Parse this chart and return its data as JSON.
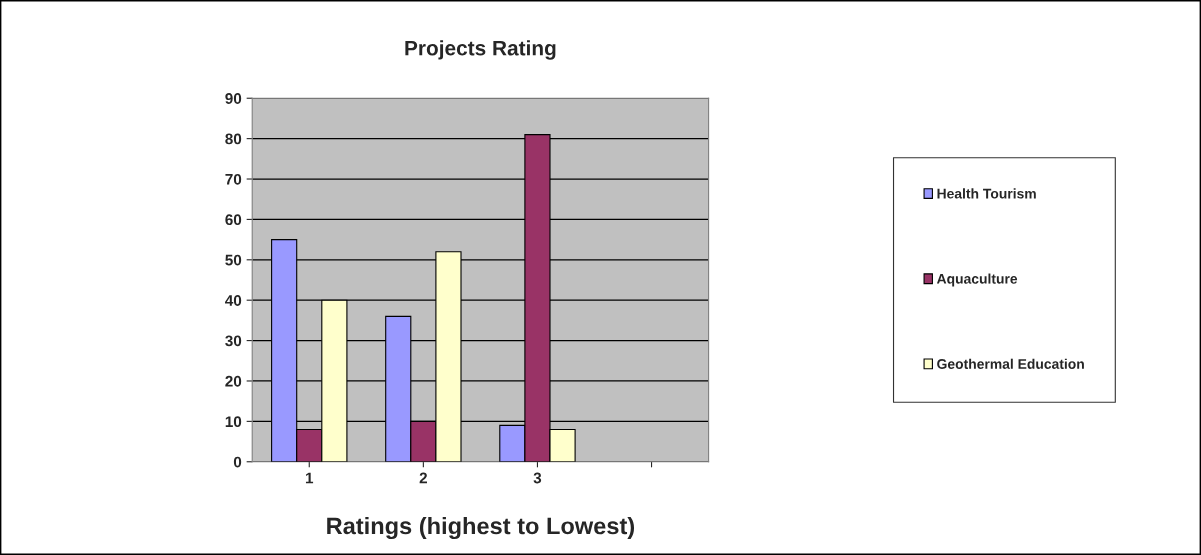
{
  "chart_data": {
    "type": "bar",
    "title": "Projects Rating",
    "xlabel": "Ratings (highest to Lowest)",
    "categories": [
      "1",
      "2",
      "3",
      null
    ],
    "series": [
      {
        "name": "Health Tourism",
        "color": "#9999ff",
        "values": [
          55,
          36,
          9,
          null
        ]
      },
      {
        "name": "Aquaculture",
        "color": "#993366",
        "values": [
          8,
          10,
          81,
          null
        ]
      },
      {
        "name": "Geothermal Education",
        "color": "#ffffcc",
        "values": [
          40,
          52,
          8,
          null
        ]
      }
    ],
    "ylim": [
      0,
      90
    ],
    "yticks": [
      0,
      10,
      20,
      30,
      40,
      50,
      60,
      70,
      80,
      90
    ],
    "grid": "y",
    "legend": "right"
  }
}
